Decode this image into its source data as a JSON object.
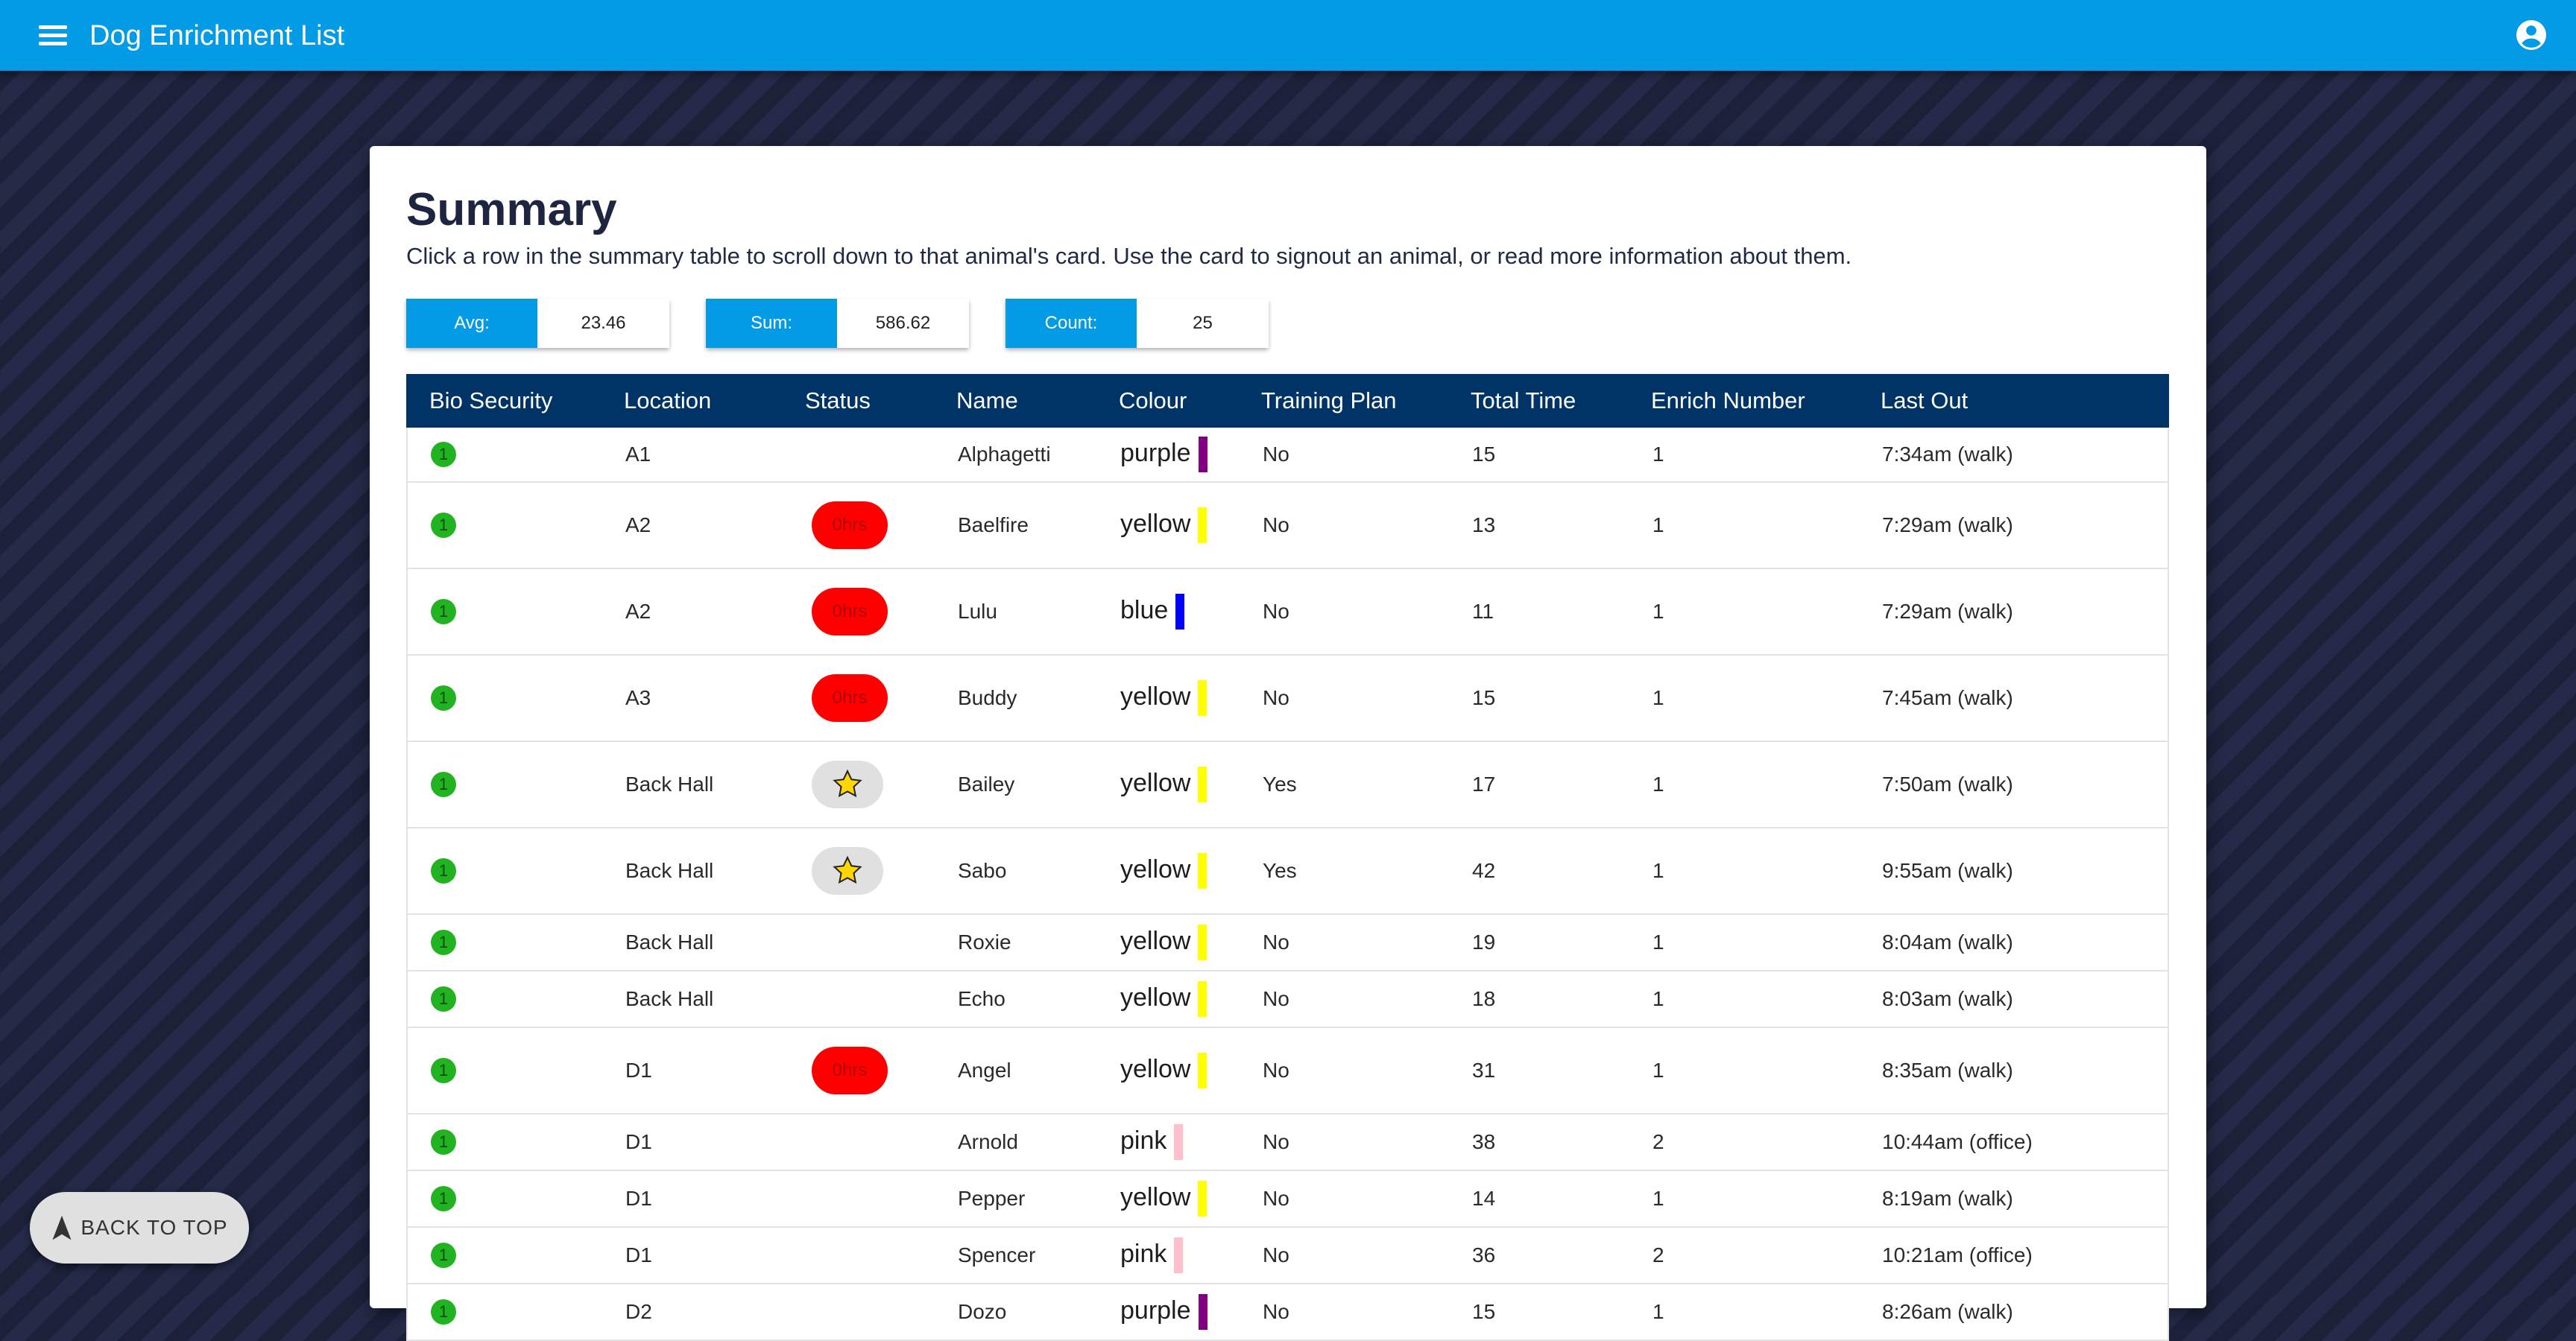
{
  "appbar": {
    "title": "Dog Enrichment List",
    "menu_icon": "menu-icon",
    "account_icon": "account-circle-icon"
  },
  "summary": {
    "title": "Summary",
    "description": "Click a row in the summary table to scroll down to that animal's card. Use the card to signout an animal, or read more information about them."
  },
  "stats": {
    "avg_label": "Avg:",
    "avg_value": "23.46",
    "sum_label": "Sum:",
    "sum_value": "586.62",
    "count_label": "Count:",
    "count_value": "25"
  },
  "table": {
    "headers": [
      "Bio Security",
      "Location",
      "Status",
      "Name",
      "Colour",
      "Training Plan",
      "Total Time",
      "Enrich Number",
      "Last Out"
    ],
    "rows": [
      {
        "bio": "1",
        "location": "A1",
        "status": "",
        "name": "Alphagetti",
        "colour": "purple",
        "training": "No",
        "total": "15",
        "enrich": "1",
        "last": "7:34am (walk)"
      },
      {
        "bio": "1",
        "location": "A2",
        "status": "0hrs",
        "name": "Baelfire",
        "colour": "yellow",
        "training": "No",
        "total": "13",
        "enrich": "1",
        "last": "7:29am (walk)"
      },
      {
        "bio": "1",
        "location": "A2",
        "status": "0hrs",
        "name": "Lulu",
        "colour": "blue",
        "training": "No",
        "total": "11",
        "enrich": "1",
        "last": "7:29am (walk)"
      },
      {
        "bio": "1",
        "location": "A3",
        "status": "0hrs",
        "name": "Buddy",
        "colour": "yellow",
        "training": "No",
        "total": "15",
        "enrich": "1",
        "last": "7:45am (walk)"
      },
      {
        "bio": "1",
        "location": "Back Hall",
        "status": "star",
        "name": "Bailey",
        "colour": "yellow",
        "training": "Yes",
        "total": "17",
        "enrich": "1",
        "last": "7:50am (walk)"
      },
      {
        "bio": "1",
        "location": "Back Hall",
        "status": "star",
        "name": "Sabo",
        "colour": "yellow",
        "training": "Yes",
        "total": "42",
        "enrich": "1",
        "last": "9:55am (walk)"
      },
      {
        "bio": "1",
        "location": "Back Hall",
        "status": "",
        "name": "Roxie",
        "colour": "yellow",
        "training": "No",
        "total": "19",
        "enrich": "1",
        "last": "8:04am (walk)"
      },
      {
        "bio": "1",
        "location": "Back Hall",
        "status": "",
        "name": "Echo",
        "colour": "yellow",
        "training": "No",
        "total": "18",
        "enrich": "1",
        "last": "8:03am (walk)"
      },
      {
        "bio": "1",
        "location": "D1",
        "status": "0hrs",
        "name": "Angel",
        "colour": "yellow",
        "training": "No",
        "total": "31",
        "enrich": "1",
        "last": "8:35am (walk)"
      },
      {
        "bio": "1",
        "location": "D1",
        "status": "",
        "name": "Arnold",
        "colour": "pink",
        "training": "No",
        "total": "38",
        "enrich": "2",
        "last": "10:44am (office)"
      },
      {
        "bio": "1",
        "location": "D1",
        "status": "",
        "name": "Pepper",
        "colour": "yellow",
        "training": "No",
        "total": "14",
        "enrich": "1",
        "last": "8:19am (walk)"
      },
      {
        "bio": "1",
        "location": "D1",
        "status": "",
        "name": "Spencer",
        "colour": "pink",
        "training": "No",
        "total": "36",
        "enrich": "2",
        "last": "10:21am (office)"
      },
      {
        "bio": "1",
        "location": "D2",
        "status": "",
        "name": "Dozo",
        "colour": "purple",
        "training": "No",
        "total": "15",
        "enrich": "1",
        "last": "8:26am (walk)"
      }
    ]
  },
  "colour_map": {
    "purple": "#800080",
    "yellow": "#ffff00",
    "blue": "#0000ff",
    "pink": "#ffc0cb"
  },
  "status_icons": {
    "star": "star-icon"
  },
  "back_to_top": {
    "label": "BACK TO TOP",
    "icon": "navigation-arrow-icon"
  }
}
